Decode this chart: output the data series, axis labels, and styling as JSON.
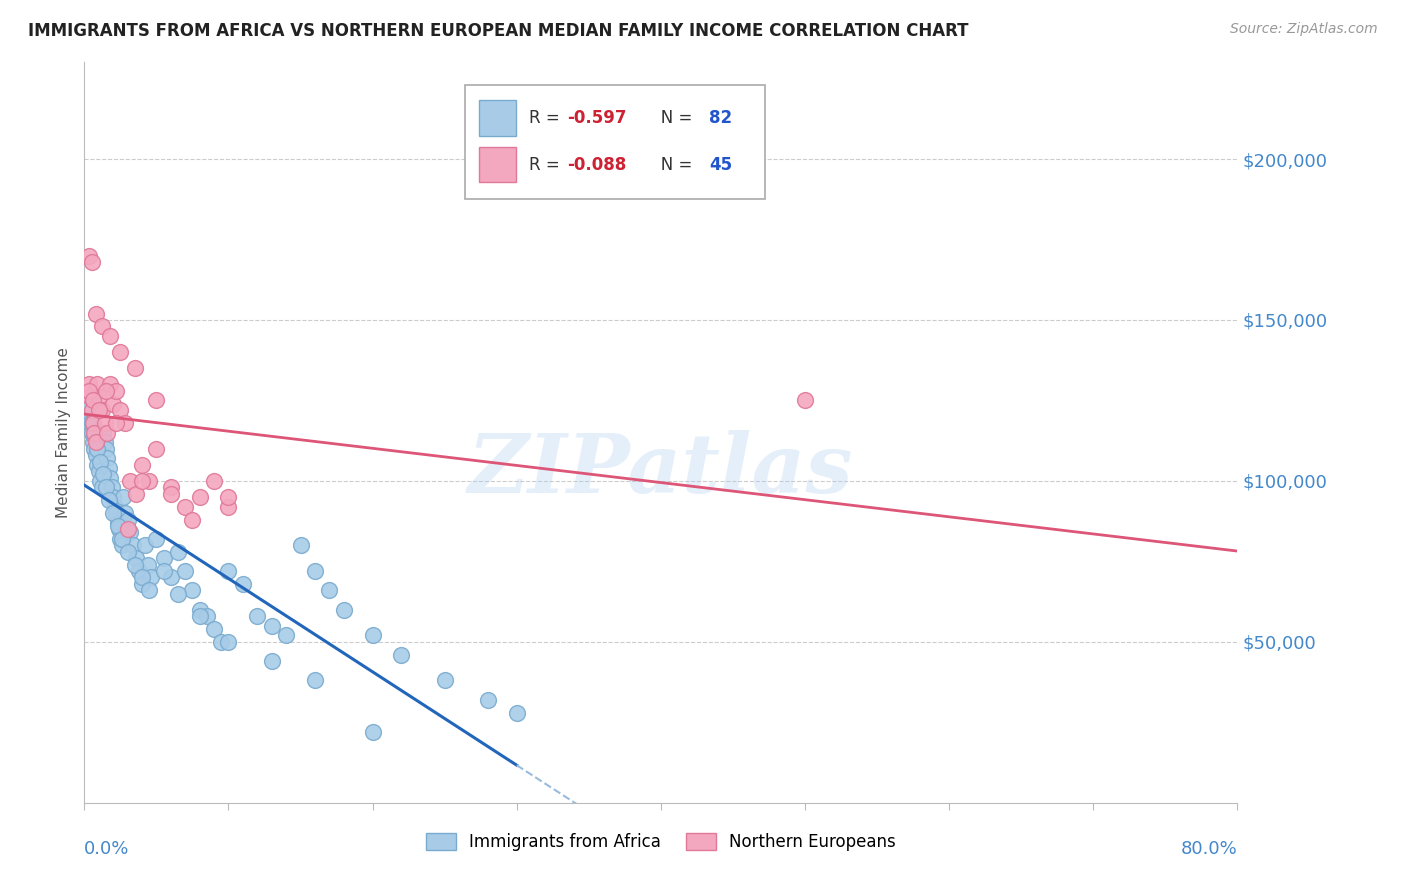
{
  "title": "IMMIGRANTS FROM AFRICA VS NORTHERN EUROPEAN MEDIAN FAMILY INCOME CORRELATION CHART",
  "source": "Source: ZipAtlas.com",
  "ylabel": "Median Family Income",
  "xlim": [
    0.0,
    0.8
  ],
  "ylim": [
    0,
    230000
  ],
  "africa_color": "#a8cce8",
  "africa_edge": "#7aabcf",
  "northern_color": "#f4a8c0",
  "northern_edge": "#e07898",
  "africa_R": -0.597,
  "africa_N": 82,
  "northern_R": -0.088,
  "northern_N": 45,
  "watermark": "ZIPatlas",
  "legend_label1": "Immigrants from Africa",
  "legend_label2": "Northern Europeans",
  "africa_line_color": "#2266bb",
  "africa_dash_color": "#99bbdd",
  "northern_line_color": "#dd5577",
  "grid_color": "#cccccc",
  "ytick_vals": [
    50000,
    100000,
    150000,
    200000
  ],
  "ytick_labels": [
    "$50,000",
    "$100,000",
    "$150,000",
    "$200,000"
  ],
  "title_fontsize": 12,
  "source_fontsize": 10,
  "axis_label_color": "#4488cc",
  "africa_x": [
    0.003,
    0.004,
    0.005,
    0.006,
    0.007,
    0.008,
    0.009,
    0.01,
    0.011,
    0.012,
    0.013,
    0.014,
    0.015,
    0.016,
    0.017,
    0.018,
    0.019,
    0.02,
    0.021,
    0.022,
    0.023,
    0.024,
    0.025,
    0.026,
    0.027,
    0.028,
    0.029,
    0.03,
    0.032,
    0.034,
    0.036,
    0.038,
    0.04,
    0.042,
    0.044,
    0.046,
    0.05,
    0.055,
    0.06,
    0.065,
    0.07,
    0.075,
    0.08,
    0.085,
    0.09,
    0.095,
    0.1,
    0.11,
    0.12,
    0.13,
    0.14,
    0.15,
    0.16,
    0.17,
    0.18,
    0.2,
    0.22,
    0.25,
    0.28,
    0.3,
    0.003,
    0.005,
    0.007,
    0.009,
    0.011,
    0.013,
    0.015,
    0.017,
    0.02,
    0.023,
    0.026,
    0.03,
    0.035,
    0.04,
    0.045,
    0.055,
    0.065,
    0.08,
    0.1,
    0.13,
    0.16,
    0.2
  ],
  "africa_y": [
    120000,
    118000,
    115000,
    112000,
    110000,
    108000,
    105000,
    103000,
    100000,
    98000,
    115000,
    112000,
    110000,
    107000,
    104000,
    101000,
    98000,
    95000,
    92000,
    90000,
    87000,
    85000,
    82000,
    80000,
    95000,
    90000,
    85000,
    88000,
    84000,
    80000,
    76000,
    72000,
    68000,
    80000,
    74000,
    70000,
    82000,
    76000,
    70000,
    78000,
    72000,
    66000,
    60000,
    58000,
    54000,
    50000,
    72000,
    68000,
    58000,
    55000,
    52000,
    80000,
    72000,
    66000,
    60000,
    52000,
    46000,
    38000,
    32000,
    28000,
    123000,
    118000,
    114000,
    110000,
    106000,
    102000,
    98000,
    94000,
    90000,
    86000,
    82000,
    78000,
    74000,
    70000,
    66000,
    72000,
    65000,
    58000,
    50000,
    44000,
    38000,
    22000
  ],
  "northern_x": [
    0.003,
    0.004,
    0.005,
    0.006,
    0.007,
    0.008,
    0.009,
    0.01,
    0.012,
    0.014,
    0.016,
    0.018,
    0.02,
    0.022,
    0.025,
    0.028,
    0.032,
    0.036,
    0.04,
    0.045,
    0.05,
    0.06,
    0.07,
    0.08,
    0.09,
    0.1,
    0.003,
    0.005,
    0.008,
    0.012,
    0.018,
    0.025,
    0.035,
    0.05,
    0.075,
    0.1,
    0.003,
    0.006,
    0.01,
    0.015,
    0.022,
    0.03,
    0.04,
    0.06,
    0.5
  ],
  "northern_y": [
    130000,
    126000,
    122000,
    118000,
    115000,
    112000,
    130000,
    126000,
    122000,
    118000,
    115000,
    130000,
    124000,
    128000,
    122000,
    118000,
    100000,
    96000,
    105000,
    100000,
    110000,
    98000,
    92000,
    95000,
    100000,
    92000,
    170000,
    168000,
    152000,
    148000,
    145000,
    140000,
    135000,
    125000,
    88000,
    95000,
    128000,
    125000,
    122000,
    128000,
    118000,
    85000,
    100000,
    96000,
    125000
  ]
}
